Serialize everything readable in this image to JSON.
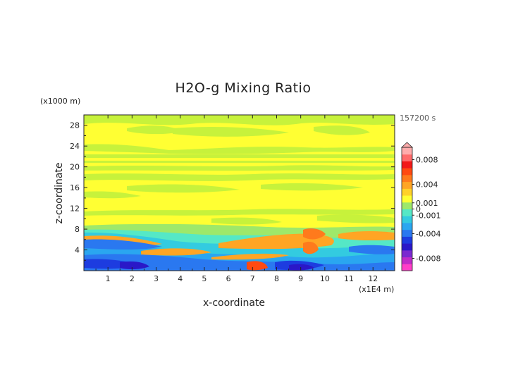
{
  "chart_data": {
    "type": "heatmap",
    "title": "H2O-g Mixing Ratio",
    "xlabel": "x-coordinate",
    "ylabel": "z-coordinate",
    "x_unit": "(x1E4 m)",
    "y_unit": "(x1000 m)",
    "time_label": "157200 s",
    "xlim": [
      0,
      12.9
    ],
    "ylim": [
      0,
      30
    ],
    "x_ticks": [
      "1",
      "2",
      "3",
      "4",
      "5",
      "6",
      "7",
      "8",
      "9",
      "10",
      "11",
      "12"
    ],
    "y_ticks": [
      "4",
      "8",
      "12",
      "16",
      "20",
      "24",
      "28"
    ],
    "colorbar": {
      "labels": [
        "0.008",
        "0.004",
        "0.001",
        "0",
        "-0.001",
        "-0.004",
        "-0.008"
      ],
      "range": [
        -0.01,
        0.01
      ],
      "colors": [
        "#ff3fc8",
        "#c02cc8",
        "#7a2ad0",
        "#2a18c8",
        "#1d3ce0",
        "#2a78f0",
        "#2aa6f0",
        "#33cbe0",
        "#55e8c6",
        "#9ee86a",
        "#ffff33",
        "#ffd12a",
        "#ffa524",
        "#ff7a1c",
        "#ff4a12",
        "#f21818",
        "#ff6b6b",
        "#ffacac"
      ]
    },
    "field_description": "Mostly near-zero (yellow/light green) field with horizontal bands; positive (orange) and negative (blue) anomalies concentrated below about 8 km; strongest negative values near the surface between x = 8 and 10."
  }
}
